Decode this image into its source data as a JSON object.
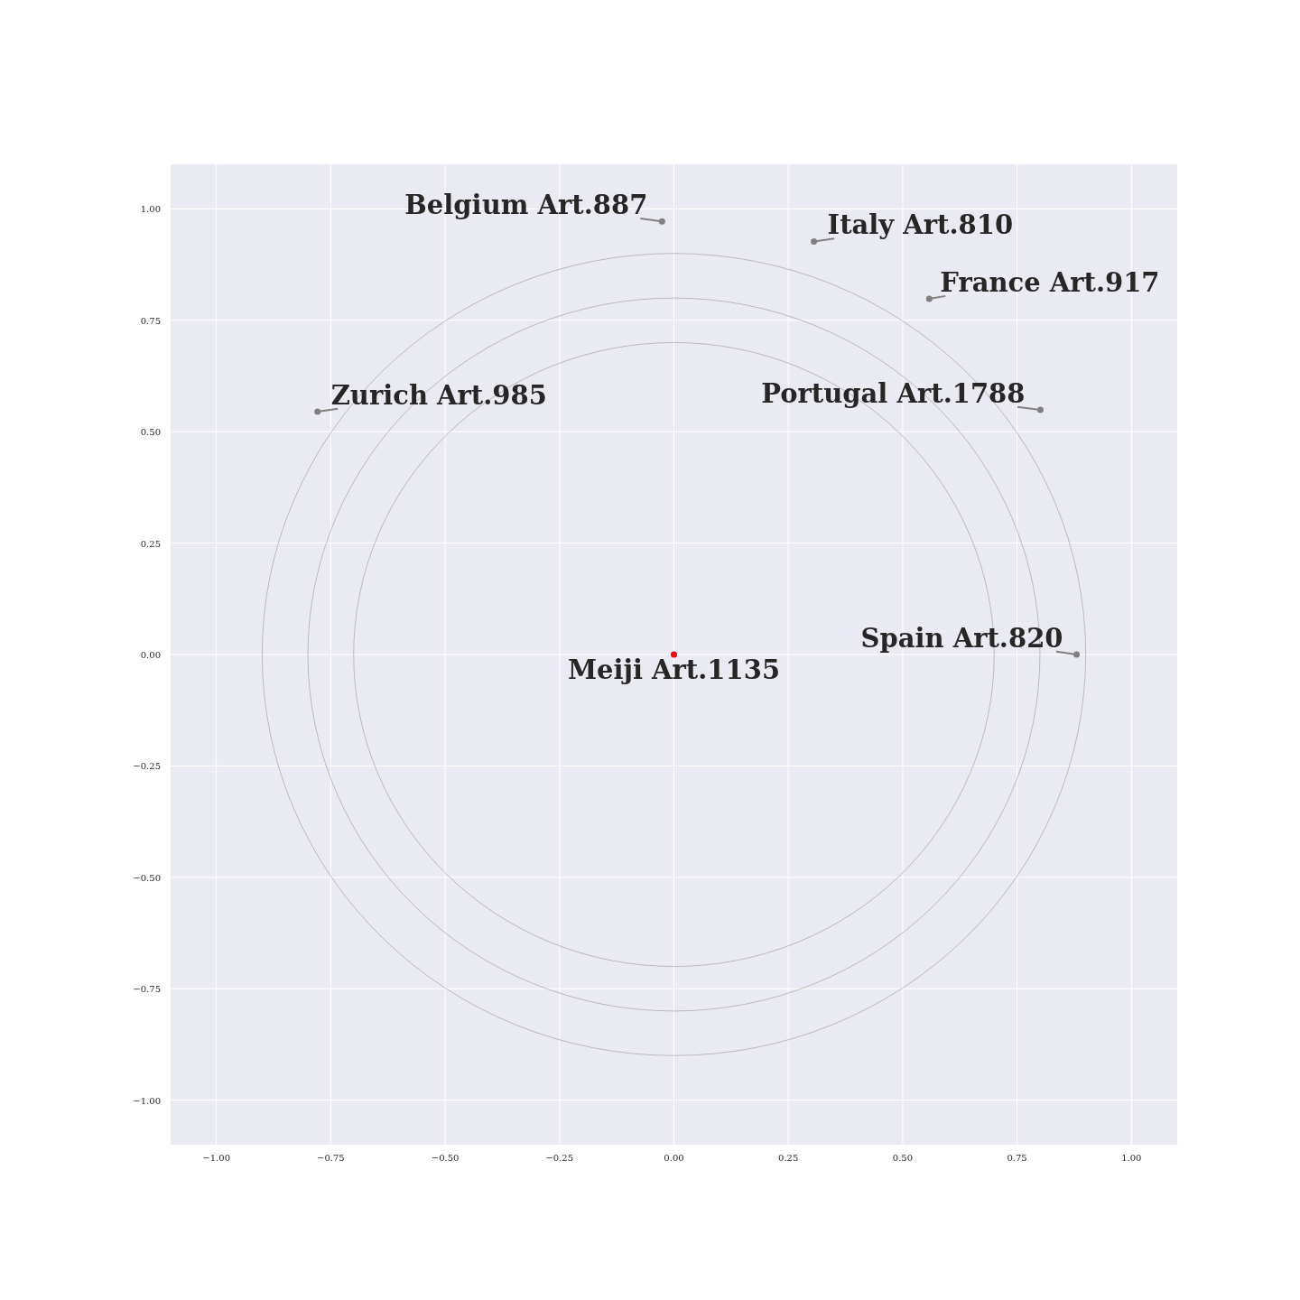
{
  "chart_data": {
    "type": "scatter",
    "xlim": [
      -1.1,
      1.1
    ],
    "ylim": [
      -1.1,
      1.1
    ],
    "xticks": [
      {
        "value": -1,
        "label": "−1.00"
      },
      {
        "value": -0.75,
        "label": "−0.75"
      },
      {
        "value": -0.5,
        "label": "−0.50"
      },
      {
        "value": -0.25,
        "label": "−0.25"
      },
      {
        "value": 0,
        "label": "0.00"
      },
      {
        "value": 0.25,
        "label": "0.25"
      },
      {
        "value": 0.5,
        "label": "0.50"
      },
      {
        "value": 0.75,
        "label": "0.75"
      },
      {
        "value": 1,
        "label": "1.00"
      }
    ],
    "yticks": [
      {
        "value": -1,
        "label": "−1.00"
      },
      {
        "value": -0.75,
        "label": "−0.75"
      },
      {
        "value": -0.5,
        "label": "−0.50"
      },
      {
        "value": -0.25,
        "label": "−0.25"
      },
      {
        "value": 0,
        "label": "0.00"
      },
      {
        "value": 0.25,
        "label": "0.25"
      },
      {
        "value": 0.5,
        "label": "0.50"
      },
      {
        "value": 0.75,
        "label": "0.75"
      },
      {
        "value": 1,
        "label": "1.00"
      }
    ],
    "grid": true,
    "marker": "circle",
    "series": [
      {
        "x": [
          -0.026,
          0.306,
          0.558,
          -0.779,
          0.801,
          0.88,
          0
        ],
        "values": [
          0.972,
          0.927,
          0.798,
          0.545,
          0.549,
          0,
          0
        ],
        "colors": [
          "#808080",
          "#808080",
          "#808080",
          "#808080",
          "#808080",
          "#808080",
          "#ff0000"
        ]
      }
    ],
    "annotations": [
      {
        "text": "Belgium Art.887",
        "x": -0.026,
        "y": 0.972
      },
      {
        "text": "Italy Art.810",
        "x": 0.306,
        "y": 0.927
      },
      {
        "text": "France Art.917",
        "x": 0.558,
        "y": 0.798
      },
      {
        "text": "Zurich Art.985",
        "x": -0.779,
        "y": 0.545
      },
      {
        "text": "Portugal Art.1788",
        "x": 0.801,
        "y": 0.549
      },
      {
        "text": "Spain Art.820",
        "x": 0.88,
        "y": 0
      },
      {
        "text": "Meiji Art.1135",
        "x": 0,
        "y": 0
      }
    ]
  }
}
